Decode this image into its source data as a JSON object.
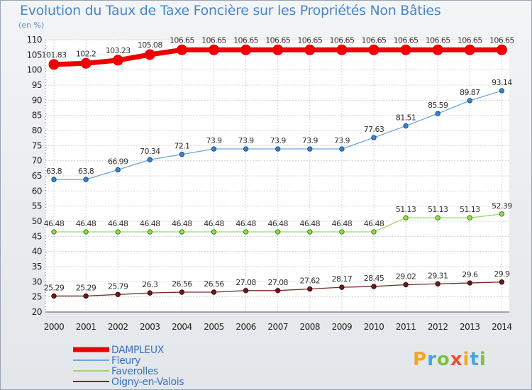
{
  "header": {
    "title": "Evolution du Taux de Taxe Foncière sur les Propriétés Non Bâties",
    "subtitle": "(en %)"
  },
  "logo": {
    "letters": [
      "P",
      "r",
      "o",
      "x",
      "i",
      "t",
      "i"
    ],
    "colors": [
      "#f5a623",
      "#4aa3df",
      "#7cc242",
      "#e94e3c",
      "#f5a623",
      "#4aa3df",
      "#7cc242"
    ]
  },
  "chart_data": {
    "type": "line",
    "title": "Evolution du Taux de Taxe Foncière sur les Propriétés Non Bâties",
    "ylabel": "(en %)",
    "x": [
      "2000",
      "2001",
      "2002",
      "2003",
      "2004",
      "2005",
      "2006",
      "2007",
      "2008",
      "2009",
      "2010",
      "2011",
      "2012",
      "2013",
      "2014"
    ],
    "ylim": [
      20,
      110
    ],
    "yticks": [
      20,
      25,
      30,
      35,
      40,
      45,
      50,
      55,
      60,
      65,
      70,
      75,
      80,
      85,
      90,
      95,
      100,
      105,
      110
    ],
    "grid": true,
    "legend_position": "bottom-left",
    "series": [
      {
        "name": "DAMPLEUX",
        "color": "#ee0000",
        "values": [
          101.83,
          102.2,
          103.23,
          105.08,
          106.65,
          106.65,
          106.65,
          106.65,
          106.65,
          106.65,
          106.65,
          106.65,
          106.65,
          106.65,
          106.65
        ],
        "labels": [
          "101.83",
          "102.2",
          "103.23",
          "105.08",
          "106.65",
          "106.65",
          "106.65",
          "106.65",
          "106.65",
          "106.65",
          "106.65",
          "106.65",
          "106.65",
          "106.65",
          "106.65"
        ]
      },
      {
        "name": "Fleury",
        "color": "#6ea6d8",
        "values": [
          63.8,
          63.8,
          66.99,
          70.34,
          72.1,
          73.9,
          73.9,
          73.9,
          73.9,
          73.9,
          77.63,
          81.51,
          85.59,
          89.87,
          93.14
        ],
        "labels": [
          "63.8",
          "63.8",
          "66.99",
          "70.34",
          "72.1",
          "73.9",
          "73.9",
          "73.9",
          "73.9",
          "73.9",
          "77.63",
          "81.51",
          "85.59",
          "89.87",
          "93.14"
        ]
      },
      {
        "name": "Faverolles",
        "color": "#9ed86a",
        "values": [
          46.48,
          46.48,
          46.48,
          46.48,
          46.48,
          46.48,
          46.48,
          46.48,
          46.48,
          46.48,
          46.48,
          51.13,
          51.13,
          51.13,
          52.39
        ],
        "labels": [
          "46.48",
          "46.48",
          "46.48",
          "46.48",
          "46.48",
          "46.48",
          "46.48",
          "46.48",
          "46.48",
          "46.48",
          "46.48",
          "51.13",
          "51.13",
          "51.13",
          "52.39"
        ]
      },
      {
        "name": "Oigny-en-Valois",
        "color": "#7a2a2a",
        "values": [
          25.29,
          25.29,
          25.79,
          26.3,
          26.56,
          26.56,
          27.08,
          27.08,
          27.62,
          28.17,
          28.45,
          29.02,
          29.31,
          29.6,
          29.9
        ],
        "labels": [
          "25.29",
          "25.29",
          "25.79",
          "26.3",
          "26.56",
          "26.56",
          "27.08",
          "27.08",
          "27.62",
          "28.17",
          "28.45",
          "29.02",
          "29.31",
          "29.6",
          "29.9"
        ]
      }
    ]
  }
}
